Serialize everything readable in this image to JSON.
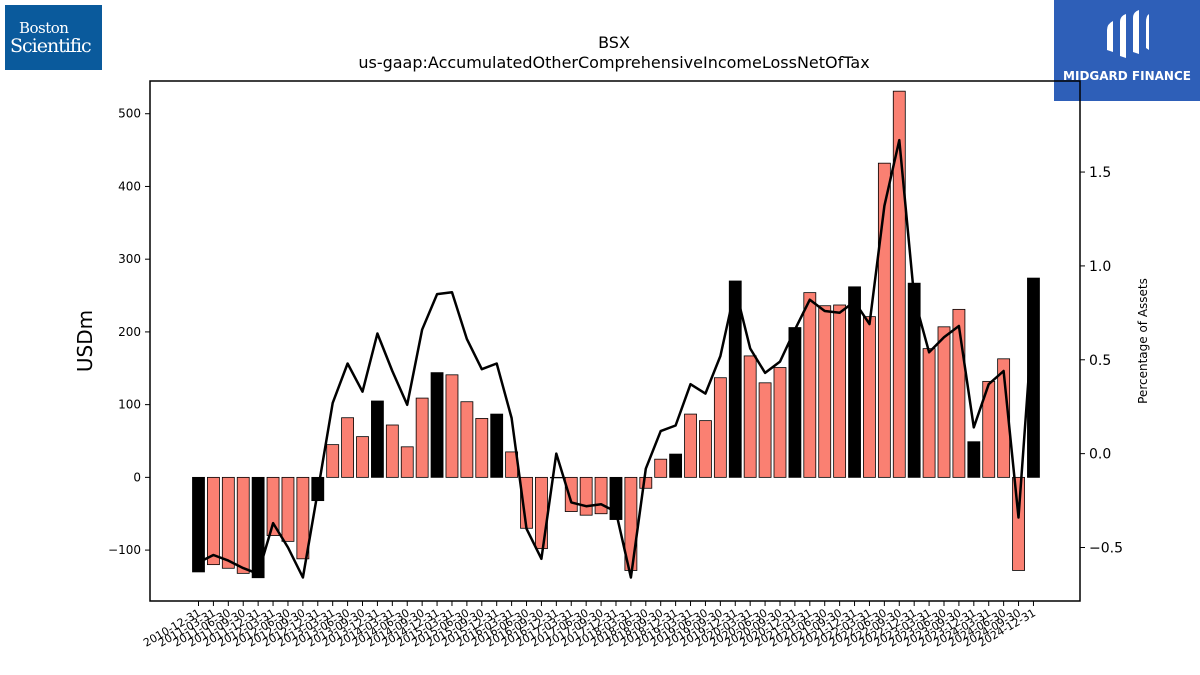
{
  "logos": {
    "left": {
      "line1": "Boston",
      "line2": "Scientific"
    },
    "right": {
      "brand": "MIDGARD FINANCE"
    }
  },
  "chart_data": {
    "type": "bar",
    "title": "BSX",
    "subtitle": "us-gaap:AccumulatedOtherComprehensiveIncomeLossNetOfTax",
    "ylabel": "USDm",
    "y2label": "Percentage of Assets",
    "ylim": [
      -170,
      545
    ],
    "y2lim": [
      -0.785,
      1.985
    ],
    "yticks": [
      -100,
      0,
      100,
      200,
      300,
      400,
      500
    ],
    "y2ticks": [
      -0.5,
      0.0,
      0.5,
      1.0,
      1.5
    ],
    "categories": [
      "2010-12-31",
      "2011-03-31",
      "2011-06-30",
      "2011-09-30",
      "2011-12-31",
      "2012-03-31",
      "2012-06-30",
      "2012-09-30",
      "2012-12-31",
      "2013-03-31",
      "2013-06-30",
      "2013-09-30",
      "2013-12-31",
      "2014-03-31",
      "2014-06-30",
      "2014-09-30",
      "2014-12-31",
      "2015-03-31",
      "2015-06-30",
      "2015-09-30",
      "2015-12-31",
      "2016-03-31",
      "2016-06-30",
      "2016-09-30",
      "2016-12-31",
      "2017-03-31",
      "2017-06-30",
      "2017-09-30",
      "2017-12-31",
      "2018-03-31",
      "2018-06-30",
      "2018-09-30",
      "2018-12-31",
      "2019-03-31",
      "2019-06-30",
      "2019-09-30",
      "2019-12-31",
      "2020-03-31",
      "2020-06-30",
      "2020-09-30",
      "2020-12-31",
      "2021-03-31",
      "2021-06-30",
      "2021-09-30",
      "2021-12-31",
      "2022-03-31",
      "2022-06-30",
      "2022-09-30",
      "2022-12-31",
      "2023-03-31",
      "2023-06-30",
      "2023-09-30",
      "2023-12-31",
      "2024-03-31",
      "2024-06-30",
      "2024-09-30",
      "2024-12-31"
    ],
    "series": [
      {
        "values": [
          -130,
          -120,
          -125,
          -132,
          -138,
          -80,
          -88,
          -112,
          -32,
          45,
          82,
          56,
          105,
          72,
          42,
          109,
          144,
          141,
          104,
          81,
          87,
          35,
          -70,
          -98,
          0,
          -47,
          -52,
          -50,
          -58,
          -128,
          -15,
          25,
          32,
          87,
          78,
          137,
          270,
          167,
          130,
          151,
          206,
          254,
          236,
          237,
          262,
          221,
          432,
          531,
          267,
          177,
          207,
          231,
          49,
          132,
          163,
          -128,
          274
        ],
        "annual_color": "#000000",
        "quarter_color": "#fa8072"
      },
      {
        "values": [
          -0.58,
          -0.54,
          -0.57,
          -0.61,
          -0.64,
          -0.37,
          -0.5,
          -0.66,
          -0.2,
          0.27,
          0.48,
          0.33,
          0.64,
          0.44,
          0.26,
          0.66,
          0.85,
          0.86,
          0.61,
          0.45,
          0.48,
          0.19,
          -0.4,
          -0.56,
          0.0,
          -0.26,
          -0.28,
          -0.27,
          -0.31,
          -0.66,
          -0.08,
          0.12,
          0.15,
          0.37,
          0.32,
          0.52,
          0.88,
          0.56,
          0.43,
          0.49,
          0.66,
          0.82,
          0.76,
          0.75,
          0.81,
          0.69,
          1.32,
          1.67,
          0.83,
          0.54,
          0.62,
          0.68,
          0.14,
          0.37,
          0.44,
          -0.34,
          0.77
        ],
        "color": "#000000"
      }
    ]
  }
}
